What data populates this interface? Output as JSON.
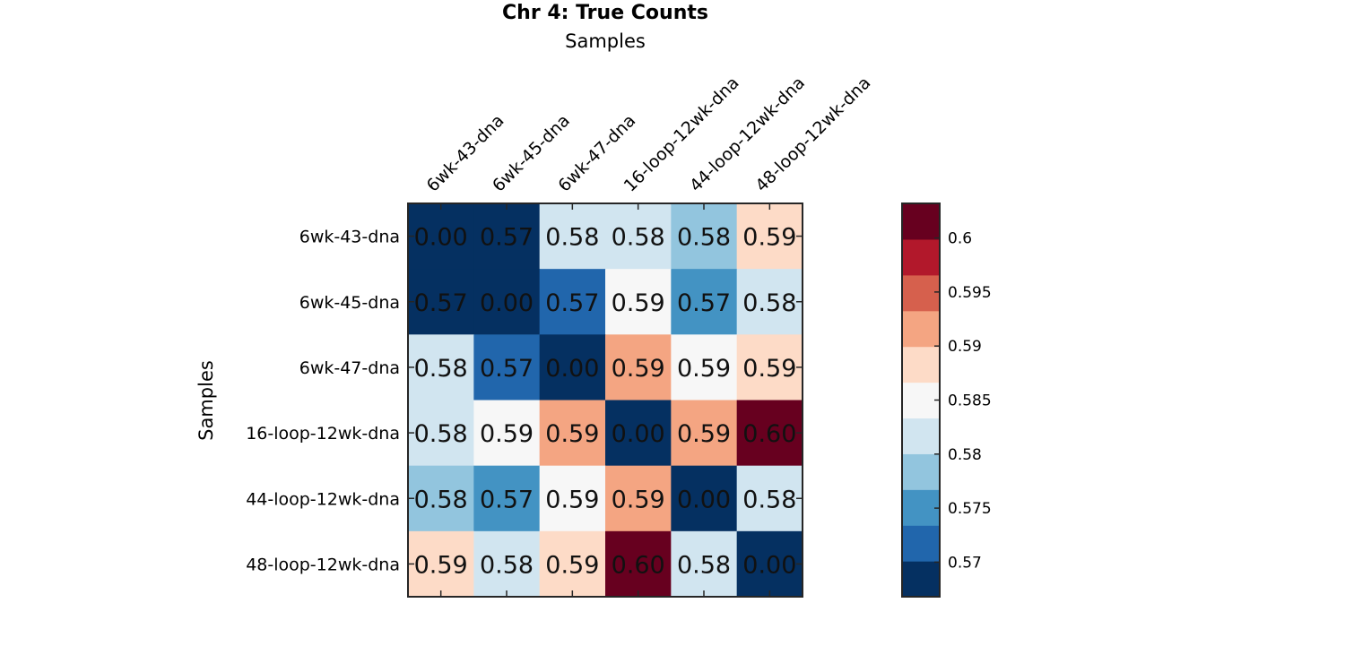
{
  "chart_data": {
    "type": "heatmap",
    "title": "Chr 4: True Counts",
    "xlabel": "Samples",
    "ylabel": "Samples",
    "x_categories": [
      "6wk-43-dna",
      "6wk-45-dna",
      "6wk-47-dna",
      "16-loop-12wk-dna",
      "44-loop-12wk-dna",
      "48-loop-12wk-dna"
    ],
    "y_categories": [
      "6wk-43-dna",
      "6wk-45-dna",
      "6wk-47-dna",
      "16-loop-12wk-dna",
      "44-loop-12wk-dna",
      "48-loop-12wk-dna"
    ],
    "values": [
      [
        0.0,
        0.569,
        0.581,
        0.581,
        0.578,
        0.588
      ],
      [
        0.569,
        0.0,
        0.572,
        0.586,
        0.574,
        0.581
      ],
      [
        0.581,
        0.572,
        0.0,
        0.591,
        0.586,
        0.589
      ],
      [
        0.581,
        0.586,
        0.591,
        0.0,
        0.591,
        0.602
      ],
      [
        0.578,
        0.574,
        0.586,
        0.591,
        0.0,
        0.581
      ],
      [
        0.588,
        0.581,
        0.589,
        0.602,
        0.581,
        0.0
      ]
    ],
    "value_labels": [
      [
        "0.00",
        "0.57",
        "0.58",
        "0.58",
        "0.58",
        "0.59"
      ],
      [
        "0.57",
        "0.00",
        "0.57",
        "0.59",
        "0.57",
        "0.58"
      ],
      [
        "0.58",
        "0.57",
        "0.00",
        "0.59",
        "0.59",
        "0.59"
      ],
      [
        "0.58",
        "0.59",
        "0.59",
        "0.00",
        "0.59",
        "0.60"
      ],
      [
        "0.58",
        "0.57",
        "0.59",
        "0.59",
        "0.00",
        "0.58"
      ],
      [
        "0.59",
        "0.58",
        "0.59",
        "0.60",
        "0.58",
        "0.00"
      ]
    ],
    "color_range": [
      0.5668,
      0.6032
    ],
    "colormap": [
      "#053061",
      "#2166ac",
      "#4393c3",
      "#92c5de",
      "#d1e5f0",
      "#f7f7f7",
      "#fddbc7",
      "#f4a582",
      "#d6604d",
      "#b2182b",
      "#67001f"
    ],
    "colorbar": {
      "ticks": [
        0.57,
        0.575,
        0.58,
        0.585,
        0.59,
        0.595,
        0.6
      ],
      "tick_labels": [
        "0.57",
        "0.575",
        "0.58",
        "0.585",
        "0.59",
        "0.595",
        "0.6"
      ]
    },
    "grid": false
  }
}
